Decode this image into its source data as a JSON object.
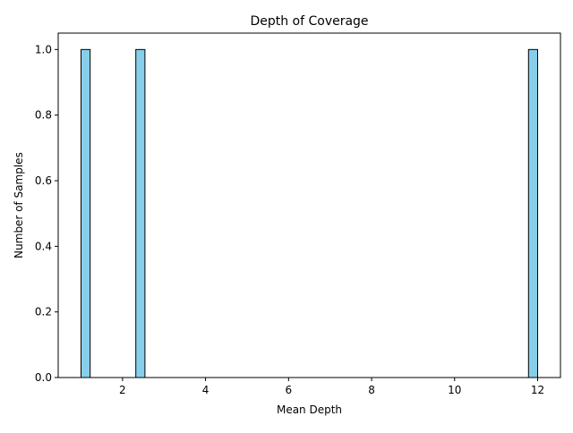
{
  "chart_data": {
    "type": "bar",
    "title": "Depth of Coverage",
    "xlabel": "Mean Depth",
    "ylabel": "Number of Samples",
    "xlim": [
      0.45,
      12.55
    ],
    "ylim": [
      0,
      1.05
    ],
    "xticks": [
      2,
      4,
      6,
      8,
      10,
      12
    ],
    "yticks": [
      0.0,
      0.2,
      0.4,
      0.6,
      0.8,
      1.0
    ],
    "xtick_labels": [
      "2",
      "4",
      "6",
      "8",
      "10",
      "12"
    ],
    "ytick_labels": [
      "0.0",
      "0.2",
      "0.4",
      "0.6",
      "0.8",
      "1.0"
    ],
    "bin_start": 1.0,
    "bin_width": 0.22,
    "bins": [
      {
        "x_start": 1.0,
        "x_end": 1.22,
        "count": 1
      },
      {
        "x_start": 2.32,
        "x_end": 2.54,
        "count": 1
      },
      {
        "x_start": 11.78,
        "x_end": 12.0,
        "count": 1
      }
    ],
    "bar_color": "#87ceeb",
    "edge_color": "#000000",
    "grid": false,
    "legend": "none"
  }
}
